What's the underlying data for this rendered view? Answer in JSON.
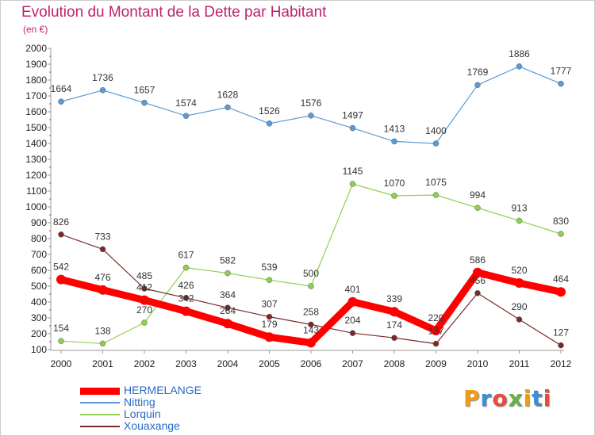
{
  "title": "Evolution du Montant de la Dette par Habitant",
  "subtitle": "(en €)",
  "logo": {
    "text": "Proxiti",
    "letter_colors": [
      "#f39c12",
      "#3a8fd8",
      "#e74c3c",
      "#6ab04c",
      "#f39c12",
      "#3a8fd8",
      "#e74c3c"
    ]
  },
  "chart_data": {
    "type": "line",
    "x": [
      2000,
      2001,
      2002,
      2003,
      2004,
      2005,
      2006,
      2007,
      2008,
      2009,
      2010,
      2011,
      2012
    ],
    "ylim": [
      100,
      2000
    ],
    "yticks": [
      100,
      200,
      300,
      400,
      500,
      600,
      700,
      800,
      900,
      1000,
      1100,
      1200,
      1300,
      1400,
      1500,
      1600,
      1700,
      1800,
      1900,
      2000
    ],
    "grid": false,
    "legend_position": "bottom-left",
    "series": [
      {
        "name": "HERMELANGE",
        "color": "#ff0000",
        "values": [
          542,
          476,
          412,
          342,
          264,
          179,
          143,
          401,
          339,
          220,
          586,
          520,
          464
        ]
      },
      {
        "name": "Nitting",
        "color": "#5b9bd5",
        "values": [
          1664,
          1736,
          1657,
          1574,
          1628,
          1526,
          1576,
          1497,
          1413,
          1400,
          1769,
          1886,
          1777
        ]
      },
      {
        "name": "Lorquin",
        "color": "#8fd14f",
        "values": [
          154,
          138,
          270,
          617,
          582,
          539,
          500,
          1145,
          1070,
          1075,
          994,
          913,
          830
        ]
      },
      {
        "name": "Xouaxange",
        "color": "#7b2a2a",
        "values": [
          826,
          733,
          485,
          426,
          364,
          307,
          258,
          204,
          174,
          137,
          456,
          290,
          127
        ]
      }
    ]
  }
}
